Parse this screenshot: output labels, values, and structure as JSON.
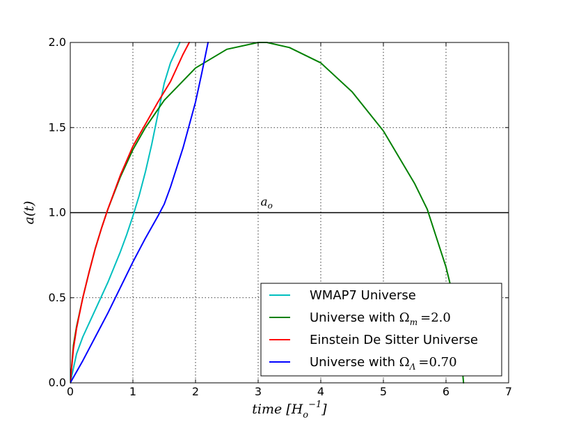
{
  "chart_data": {
    "type": "line",
    "title": "",
    "xlabel": "time [H_o^-1]",
    "ylabel": "a(t)",
    "xlim": [
      0,
      7
    ],
    "ylim": [
      0,
      2.0
    ],
    "xticks": [
      "0",
      "1",
      "2",
      "3",
      "4",
      "5",
      "6",
      "7"
    ],
    "yticks": [
      "0.0",
      "0.5",
      "1.0",
      "1.5",
      "2.0"
    ],
    "grid": true,
    "legend_placement": "lower-right",
    "hline": {
      "y": 1.0,
      "label": "a_o",
      "label_x": 3.15,
      "color": "#000000"
    },
    "series": [
      {
        "name": "WMAP7 Universe",
        "color": "#00bfbf",
        "points": [
          [
            0,
            0
          ],
          [
            0.1,
            0.17
          ],
          [
            0.2,
            0.27
          ],
          [
            0.3,
            0.35
          ],
          [
            0.4,
            0.43
          ],
          [
            0.5,
            0.51
          ],
          [
            0.6,
            0.59
          ],
          [
            0.7,
            0.68
          ],
          [
            0.8,
            0.77
          ],
          [
            0.9,
            0.87
          ],
          [
            1.0,
            0.98
          ],
          [
            1.1,
            1.1
          ],
          [
            1.2,
            1.24
          ],
          [
            1.3,
            1.4
          ],
          [
            1.4,
            1.58
          ],
          [
            1.5,
            1.76
          ],
          [
            1.6,
            1.88
          ],
          [
            1.75,
            2.0
          ]
        ]
      },
      {
        "name": "Universe with Ω_m = 2.0",
        "color": "#008000",
        "points": [
          [
            0,
            0
          ],
          [
            0.05,
            0.22
          ],
          [
            0.1,
            0.33
          ],
          [
            0.2,
            0.5
          ],
          [
            0.3,
            0.65
          ],
          [
            0.4,
            0.79
          ],
          [
            0.5,
            0.91
          ],
          [
            0.6,
            1.02
          ],
          [
            0.8,
            1.21
          ],
          [
            1.0,
            1.37
          ],
          [
            1.2,
            1.5
          ],
          [
            1.5,
            1.66
          ],
          [
            2.0,
            1.85
          ],
          [
            2.5,
            1.96
          ],
          [
            3.0,
            2.0
          ],
          [
            3.14,
            2.0
          ],
          [
            3.5,
            1.97
          ],
          [
            4.0,
            1.88
          ],
          [
            4.5,
            1.71
          ],
          [
            5.0,
            1.48
          ],
          [
            5.5,
            1.17
          ],
          [
            5.7,
            1.02
          ],
          [
            6.0,
            0.68
          ],
          [
            6.1,
            0.53
          ],
          [
            6.2,
            0.33
          ],
          [
            6.28,
            0.0
          ]
        ]
      },
      {
        "name": "Einstein De Sitter Universe",
        "color": "#ff0000",
        "points": [
          [
            0,
            0
          ],
          [
            0.05,
            0.2
          ],
          [
            0.1,
            0.32
          ],
          [
            0.2,
            0.5
          ],
          [
            0.3,
            0.65
          ],
          [
            0.4,
            0.79
          ],
          [
            0.5,
            0.91
          ],
          [
            0.6,
            1.02
          ],
          [
            0.8,
            1.22
          ],
          [
            1.0,
            1.39
          ],
          [
            1.2,
            1.52
          ],
          [
            1.4,
            1.65
          ],
          [
            1.6,
            1.77
          ],
          [
            1.8,
            1.93
          ],
          [
            1.9,
            2.0
          ]
        ]
      },
      {
        "name": "Universe with Ω_Λ = 0.70",
        "color": "#0000ff",
        "points": [
          [
            0,
            0
          ],
          [
            0.2,
            0.13
          ],
          [
            0.4,
            0.27
          ],
          [
            0.6,
            0.41
          ],
          [
            0.8,
            0.56
          ],
          [
            1.0,
            0.71
          ],
          [
            1.2,
            0.85
          ],
          [
            1.4,
            0.98
          ],
          [
            1.5,
            1.05
          ],
          [
            1.6,
            1.15
          ],
          [
            1.8,
            1.38
          ],
          [
            2.0,
            1.65
          ],
          [
            2.1,
            1.82
          ],
          [
            2.2,
            2.0
          ]
        ]
      }
    ]
  },
  "legend": {
    "items": [
      {
        "key": "wmap7",
        "color": "#00bfbf",
        "prefix": "WMAP7 Universe",
        "math": ""
      },
      {
        "key": "omega-m",
        "color": "#008000",
        "prefix": "Universe with ",
        "math": "Ω_m = 2.0"
      },
      {
        "key": "eds",
        "color": "#ff0000",
        "prefix": "Einstein De Sitter Universe",
        "math": ""
      },
      {
        "key": "omega-lambda",
        "color": "#0000ff",
        "prefix": "Universe with ",
        "math": "Ω_Λ = 0.70"
      }
    ]
  }
}
